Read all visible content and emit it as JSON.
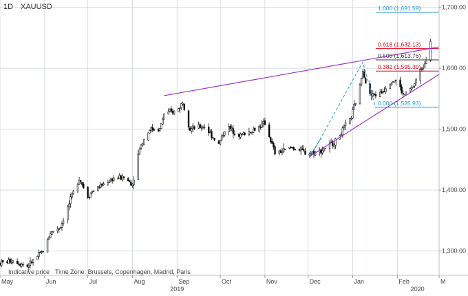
{
  "header": {
    "interval": "1D",
    "symbol": "XAUUSD"
  },
  "footer": {
    "price_type": "Indicative price",
    "timezone": "Time Zone: Brussels, Copenhagen, Madrid, Paris"
  },
  "colors": {
    "candle_up": "#ffffff",
    "candle_down": "#000000",
    "trendline": "#9b30c9",
    "fib_red": "#e0001a",
    "fib_blue": "#1f9ad6",
    "fib_black": "#333333",
    "grid": "#d6dde3",
    "axis_text": "#444444"
  },
  "chart_data": {
    "type": "candlestick",
    "title": "XAUUSD",
    "ylim": [
      1260,
      1712
    ],
    "y_ticks": [
      {
        "value": 1300,
        "label": "1,300.00"
      },
      {
        "value": 1400,
        "label": "1,400.00"
      },
      {
        "value": 1500,
        "label": "1,500.00"
      },
      {
        "value": 1600,
        "label": "1,600.00"
      },
      {
        "value": 1700,
        "label": "1,700.00"
      }
    ],
    "x_ticks": [
      {
        "date": "2019-05-01",
        "label": "May"
      },
      {
        "date": "2019-06-01",
        "label": "Jun"
      },
      {
        "date": "2019-07-01",
        "label": "Jul"
      },
      {
        "date": "2019-08-01",
        "label": "Aug"
      },
      {
        "date": "2019-09-01",
        "label": "Sep"
      },
      {
        "date": "2019-10-01",
        "label": "Oct"
      },
      {
        "date": "2019-11-01",
        "label": "Nov"
      },
      {
        "date": "2019-12-01",
        "label": "Dec"
      },
      {
        "date": "2020-01-01",
        "label": "Jan"
      },
      {
        "date": "2020-02-01",
        "label": "Feb"
      },
      {
        "date": "2020-03-01",
        "label": "M"
      }
    ],
    "year_labels": [
      {
        "date": "2019-09-01",
        "label": "2019"
      },
      {
        "date": "2020-02-15",
        "label": "2020"
      }
    ],
    "x_range": [
      "2019-05-01",
      "2020-03-01"
    ],
    "price_path": [
      [
        "2019-05-01",
        1280
      ],
      [
        "2019-05-10",
        1285
      ],
      [
        "2019-05-20",
        1275
      ],
      [
        "2019-05-31",
        1300
      ],
      [
        "2019-06-05",
        1330
      ],
      [
        "2019-06-12",
        1340
      ],
      [
        "2019-06-20",
        1390
      ],
      [
        "2019-06-25",
        1420
      ],
      [
        "2019-07-01",
        1390
      ],
      [
        "2019-07-05",
        1400
      ],
      [
        "2019-07-12",
        1410
      ],
      [
        "2019-07-19",
        1420
      ],
      [
        "2019-07-26",
        1420
      ],
      [
        "2019-08-01",
        1410
      ],
      [
        "2019-08-06",
        1470
      ],
      [
        "2019-08-13",
        1500
      ],
      [
        "2019-08-20",
        1500
      ],
      [
        "2019-08-23",
        1525
      ],
      [
        "2019-09-01",
        1530
      ],
      [
        "2019-09-05",
        1545
      ],
      [
        "2019-09-10",
        1500
      ],
      [
        "2019-09-20",
        1505
      ],
      [
        "2019-09-30",
        1475
      ],
      [
        "2019-10-05",
        1505
      ],
      [
        "2019-10-15",
        1490
      ],
      [
        "2019-10-25",
        1500
      ],
      [
        "2019-11-01",
        1510
      ],
      [
        "2019-11-08",
        1460
      ],
      [
        "2019-11-20",
        1470
      ],
      [
        "2019-12-01",
        1460
      ],
      [
        "2019-12-10",
        1465
      ],
      [
        "2019-12-20",
        1480
      ],
      [
        "2019-12-31",
        1520
      ],
      [
        "2020-01-06",
        1570
      ],
      [
        "2020-01-08",
        1600
      ],
      [
        "2020-01-12",
        1555
      ],
      [
        "2020-01-20",
        1558
      ],
      [
        "2020-01-28",
        1580
      ],
      [
        "2020-02-01",
        1580
      ],
      [
        "2020-02-05",
        1555
      ],
      [
        "2020-02-12",
        1570
      ],
      [
        "2020-02-20",
        1610
      ],
      [
        "2020-02-24",
        1645
      ]
    ],
    "trendlines": [
      {
        "from": [
          "2019-08-23",
          1555
        ],
        "to": [
          "2020-03-01",
          1635
        ]
      },
      {
        "from": [
          "2019-12-02",
          1455
        ],
        "to": [
          "2020-03-01",
          1590
        ]
      }
    ],
    "zigzag": [
      [
        "2019-12-02",
        1455
      ],
      [
        "2019-12-10",
        1485
      ],
      [
        "2019-12-05",
        1465
      ],
      [
        "2020-01-08",
        1610
      ],
      [
        "2020-01-17",
        1535
      ]
    ],
    "fib_levels": [
      {
        "value": 1691.59,
        "label": "1.000 (1,691.59)",
        "color": "#1f9ad6",
        "start": "2020-01-17"
      },
      {
        "value": 1632.13,
        "label": "0.618 (1,632.13)",
        "color": "#e0001a",
        "start": "2020-01-17"
      },
      {
        "value": 1613.76,
        "label": "0.500 (1,613.76)",
        "color": "#333333",
        "start": "2020-01-17"
      },
      {
        "value": 1595.39,
        "label": "0.382 (1,595.39)",
        "color": "#e0001a",
        "start": "2020-01-17"
      },
      {
        "value": 1535.93,
        "label": "0.000 (1,535.93)",
        "color": "#1f9ad6",
        "start": "2020-01-17"
      }
    ]
  }
}
